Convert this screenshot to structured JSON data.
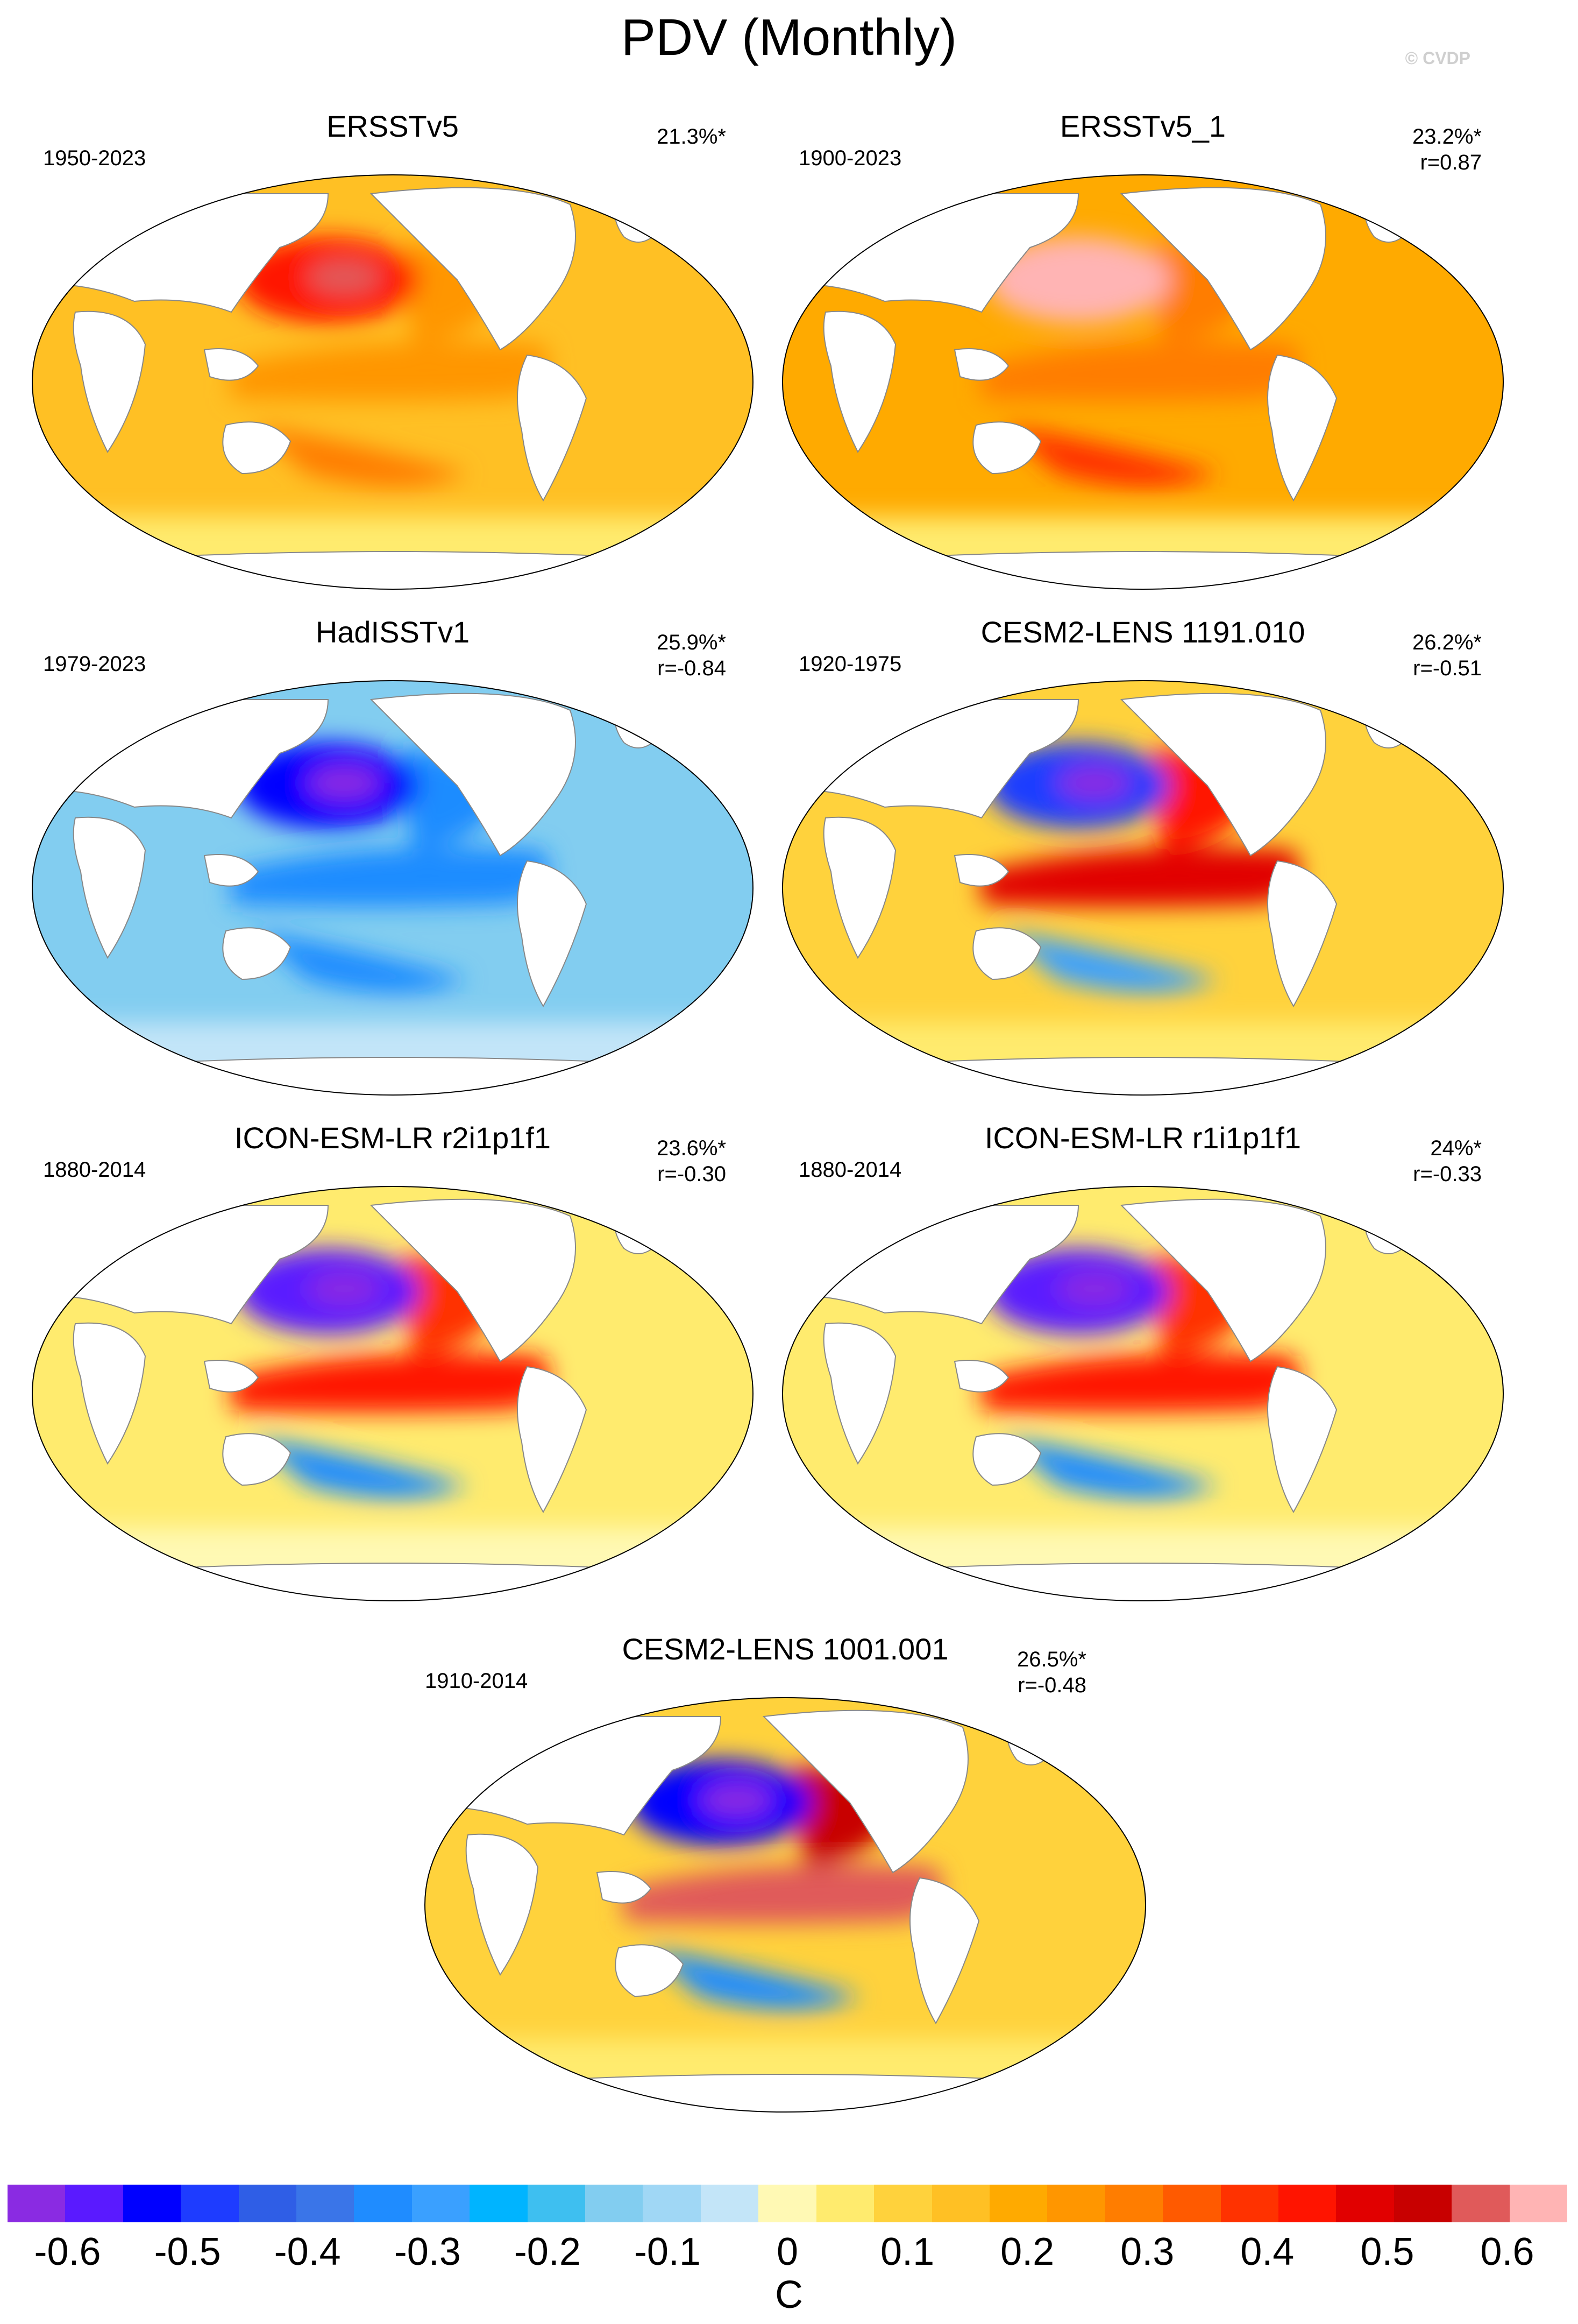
{
  "figure": {
    "title": "PDV (Monthly)",
    "watermark": "© CVDP"
  },
  "chart_data": {
    "type": "map_panels",
    "variable": "PDV",
    "units": "C",
    "colorbar": {
      "colors": [
        "#8a2be2",
        "#5a1aff",
        "#0000ff",
        "#1e3cff",
        "#2f5ee6",
        "#3a75e8",
        "#1f8cff",
        "#3aa0ff",
        "#00b4ff",
        "#3ebff0",
        "#82cdf0",
        "#a0d7f5",
        "#c3e5f8",
        "#fff9b4",
        "#ffeb6e",
        "#ffd23c",
        "#ffc024",
        "#ffaa00",
        "#ff9600",
        "#ff7d00",
        "#ff5a00",
        "#ff3200",
        "#ff1400",
        "#e10000",
        "#c80000",
        "#e05a5a",
        "#ffb4b4"
      ],
      "tick_values": [
        -0.6,
        -0.5,
        -0.4,
        -0.3,
        -0.2,
        -0.1,
        0,
        0.1,
        0.2,
        0.3,
        0.4,
        0.5,
        0.6
      ],
      "tick_labels": [
        "-0.6",
        "-0.5",
        "-0.4",
        "-0.3",
        "-0.2",
        "-0.1",
        "0",
        "0.1",
        "0.2",
        "0.3",
        "0.4",
        "0.5",
        "0.6"
      ],
      "range": [
        -0.65,
        0.65
      ],
      "label": "C"
    },
    "panels": [
      {
        "name": "ERSSTv5",
        "years": "1950-2023",
        "pct": "21.3%*",
        "r": "",
        "npo": 0.45,
        "tropical": 0.25,
        "background": 0.15
      },
      {
        "name": "ERSSTv5_1",
        "years": "1900-2023",
        "pct": "23.2%*",
        "r": "r=0.87",
        "npo": 0.65,
        "tropical": 0.3,
        "background": 0.2
      },
      {
        "name": "HadISSTv1",
        "years": "1979-2023",
        "pct": "25.9%*",
        "r": "r=-0.84",
        "npo": -0.55,
        "tropical": -0.35,
        "background": -0.15
      },
      {
        "name": "CESM2-LENS 1191.010",
        "years": "1920-1975",
        "pct": "26.2%*",
        "r": "r=-0.51",
        "npo": -0.5,
        "tropical": 0.5,
        "background": 0.1
      },
      {
        "name": "ICON-ESM-LR r2i1p1f1",
        "years": "1880-2014",
        "pct": "23.6%*",
        "r": "r=-0.30",
        "npo": -0.6,
        "tropical": 0.45,
        "background": 0.05
      },
      {
        "name": "ICON-ESM-LR r1i1p1f1",
        "years": "1880-2014",
        "pct": "24%*",
        "r": "r=-0.33",
        "npo": -0.6,
        "tropical": 0.45,
        "background": 0.05
      },
      {
        "name": "CESM2-LENS 1001.001",
        "years": "1910-2014",
        "pct": "26.5%*",
        "r": "r=-0.48",
        "npo": -0.55,
        "tropical": 0.6,
        "background": 0.1
      }
    ]
  }
}
